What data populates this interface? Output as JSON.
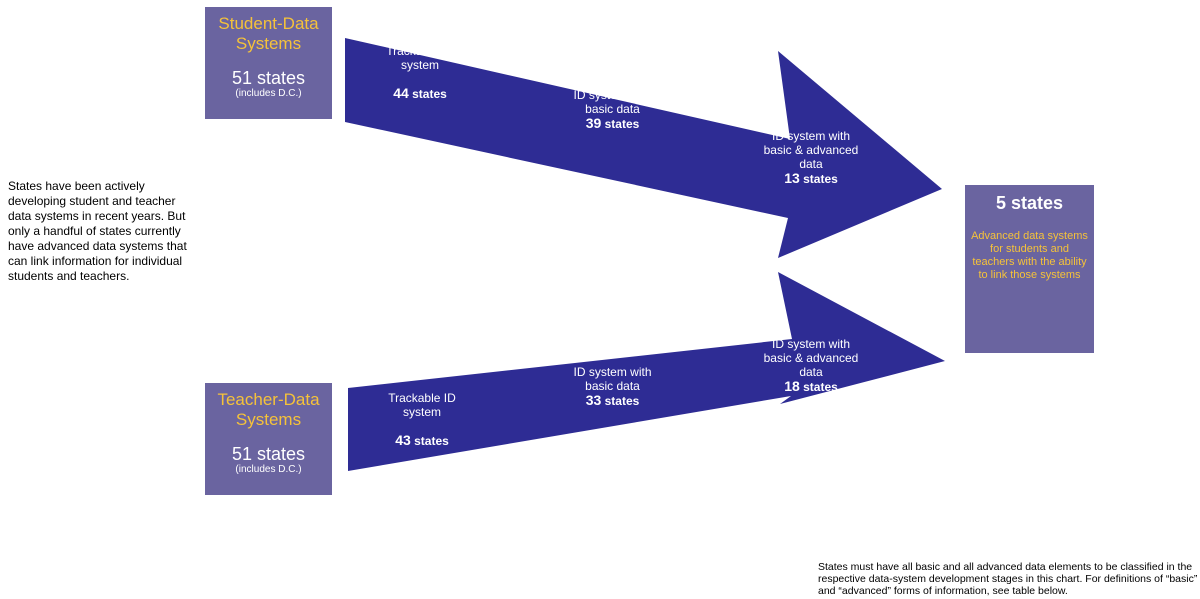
{
  "student": {
    "title": "Student-Data Systems",
    "count": "51 states",
    "note": "(includes  D.C.)",
    "stages": [
      {
        "label": "Trackable ID system",
        "num": "44",
        "unit": "states"
      },
      {
        "label": "ID system with basic data",
        "num": "39",
        "unit": "states"
      },
      {
        "label": "ID system with basic & advanced data",
        "num": "13",
        "unit": "states"
      }
    ]
  },
  "teacher": {
    "title": "Teacher-Data Systems",
    "count": "51 states",
    "note": "(includes  D.C.)",
    "stages": [
      {
        "label": "Trackable ID system",
        "num": "43",
        "unit": "states"
      },
      {
        "label": "ID system with basic data",
        "num": "33",
        "unit": "states"
      },
      {
        "label": "ID system with basic & advanced data",
        "num": "18",
        "unit": "states"
      }
    ]
  },
  "result": {
    "headline": "5 states",
    "description": "Advanced data systems for students and teachers with the ability to link those systems"
  },
  "intro": "States have been actively developing student and teacher data systems in recent years. But only a handful of states currently have advanced data systems that can link information for individual students and teachers.",
  "footnote": "States must have all basic and all advanced data elements to be classified in the respective data-system development stages in this chart. For definitions of “basic” and “advanced” forms of information, see table below.",
  "colors": {
    "arrow": "#2e2c94",
    "box": "#6a64a0",
    "accent": "#f5c23a"
  }
}
